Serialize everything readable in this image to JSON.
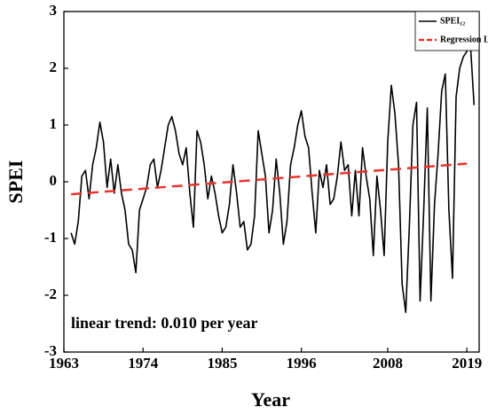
{
  "chart_data": {
    "type": "line",
    "x_label": "Year",
    "y_label": "SPEI",
    "annotation": "linear trend: 0.010 per year",
    "xlim": [
      1963,
      2020.7
    ],
    "xticks": [
      1963,
      1974,
      1985,
      1996,
      2008,
      2019
    ],
    "ylim": [
      -3,
      3
    ],
    "yticks": [
      -3,
      -2,
      -1,
      0,
      1,
      2,
      3
    ],
    "legend": "upper right",
    "series": [
      {
        "name": "SPEI₁₂",
        "color": "#000000",
        "dash": false,
        "x": [
          1964,
          1964.5,
          1965,
          1965.5,
          1966,
          1966.5,
          1967,
          1967.5,
          1968,
          1968.5,
          1969,
          1969.5,
          1970,
          1970.5,
          1971,
          1971.5,
          1972,
          1972.5,
          1973,
          1973.5,
          1974,
          1974.5,
          1975,
          1975.5,
          1976,
          1976.5,
          1977,
          1977.5,
          1978,
          1978.5,
          1979,
          1979.5,
          1980,
          1980.5,
          1981,
          1981.5,
          1982,
          1982.5,
          1983,
          1983.5,
          1984,
          1984.5,
          1985,
          1985.5,
          1986,
          1986.5,
          1987,
          1987.5,
          1988,
          1988.5,
          1989,
          1989.5,
          1990,
          1990.5,
          1991,
          1991.5,
          1992,
          1992.5,
          1993,
          1993.5,
          1994,
          1994.5,
          1995,
          1995.5,
          1996,
          1996.5,
          1997,
          1997.5,
          1998,
          1998.5,
          1999,
          1999.5,
          2000,
          2000.5,
          2001,
          2001.5,
          2002,
          2002.5,
          2003,
          2003.5,
          2004,
          2004.5,
          2005,
          2005.5,
          2006,
          2006.5,
          2007,
          2007.5,
          2008,
          2008.5,
          2009,
          2009.5,
          2010,
          2010.5,
          2011,
          2011.5,
          2012,
          2012.5,
          2013,
          2013.5,
          2014,
          2014.5,
          2015,
          2015.5,
          2016,
          2016.5,
          2017,
          2017.5,
          2018,
          2018.5,
          2019,
          2019.5,
          2020
        ],
        "values": [
          -0.9,
          -1.1,
          -0.7,
          0.1,
          0.2,
          -0.3,
          0.3,
          0.6,
          1.05,
          0.7,
          -0.1,
          0.4,
          -0.2,
          0.3,
          -0.2,
          -0.5,
          -1.1,
          -1.2,
          -1.6,
          -0.5,
          -0.3,
          -0.1,
          0.3,
          0.4,
          -0.1,
          0.2,
          0.6,
          1.0,
          1.15,
          0.9,
          0.5,
          0.3,
          0.6,
          -0.2,
          -0.8,
          0.9,
          0.7,
          0.3,
          -0.3,
          0.1,
          -0.2,
          -0.6,
          -0.9,
          -0.8,
          -0.4,
          0.3,
          -0.2,
          -0.8,
          -0.7,
          -1.2,
          -1.1,
          -0.6,
          0.9,
          0.5,
          0.1,
          -0.9,
          -0.5,
          0.4,
          -0.2,
          -1.1,
          -0.7,
          0.3,
          0.6,
          1.0,
          1.25,
          0.8,
          0.6,
          -0.2,
          -0.9,
          0.2,
          -0.1,
          0.3,
          -0.4,
          -0.3,
          0.1,
          0.7,
          0.2,
          0.3,
          -0.6,
          0.2,
          -0.6,
          0.6,
          0.1,
          -0.3,
          -1.3,
          0.1,
          -0.5,
          -1.3,
          0.7,
          1.7,
          1.2,
          0.3,
          -1.8,
          -2.3,
          -0.8,
          1.0,
          1.4,
          -2.1,
          -0.5,
          1.3,
          -2.1,
          -0.4,
          0.5,
          1.6,
          1.9,
          -0.5,
          -1.7,
          1.5,
          2.0,
          2.2,
          2.3,
          2.4,
          1.35
        ]
      },
      {
        "name": "Regression Line",
        "color": "#e8322d",
        "dash": true,
        "x": [
          1964,
          2019
        ],
        "values": [
          -0.22,
          0.32
        ]
      }
    ]
  }
}
